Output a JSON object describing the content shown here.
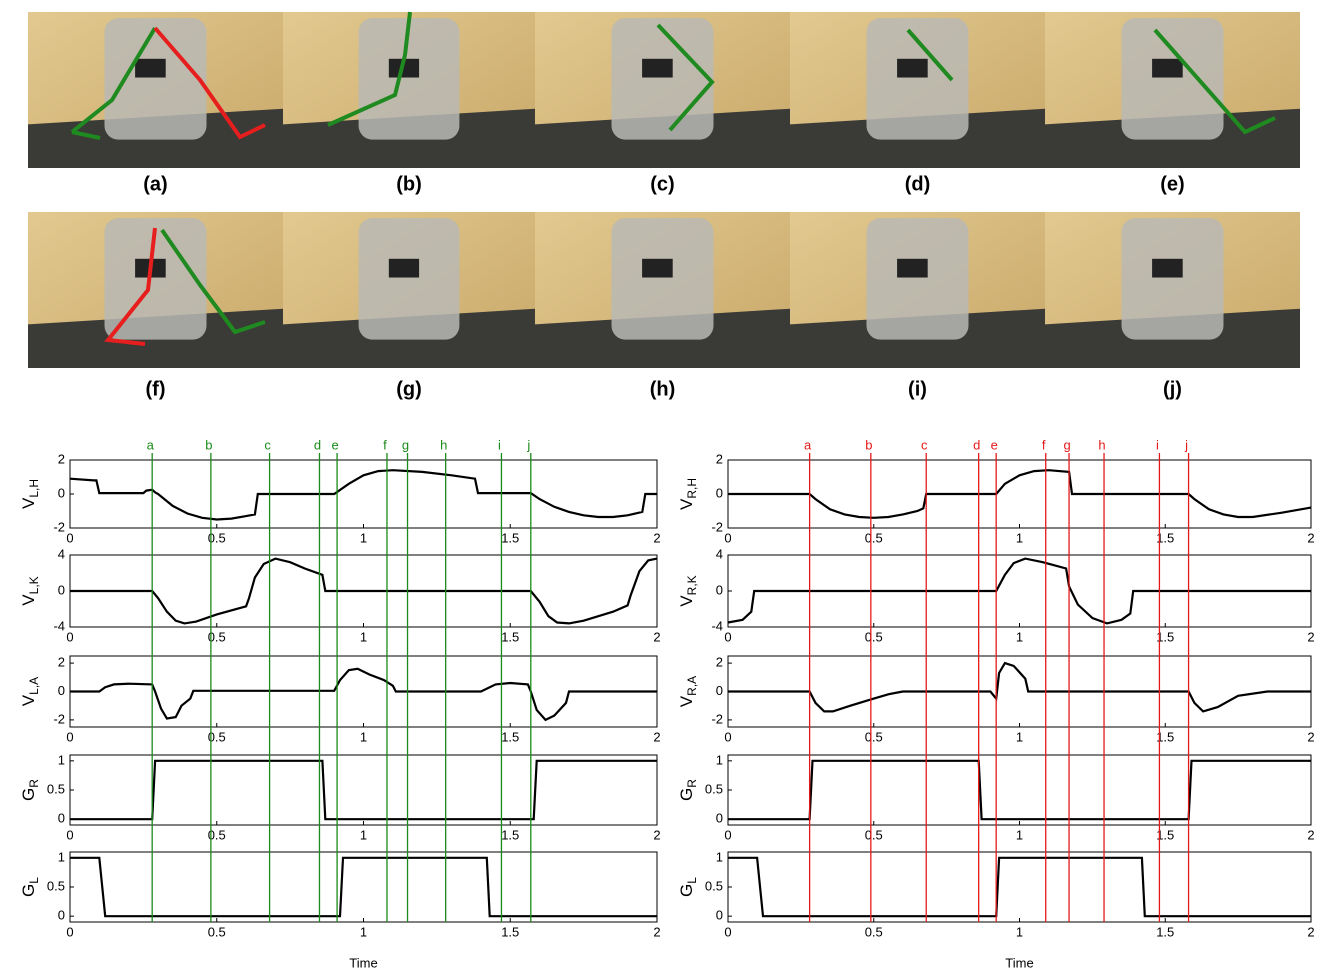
{
  "photos": {
    "labels": [
      "(a)",
      "(b)",
      "(c)",
      "(d)",
      "(e)",
      "(f)",
      "(g)",
      "(h)",
      "(i)",
      "(j)"
    ]
  },
  "markers": [
    {
      "color": "#1a8a1a",
      "labels": [
        "a",
        "b",
        "c",
        "d",
        "e",
        "f",
        "g",
        "h",
        "i",
        "j"
      ],
      "x": [
        0.28,
        0.48,
        0.68,
        0.85,
        0.91,
        1.08,
        1.15,
        1.28,
        1.47,
        1.57
      ]
    },
    {
      "color": "#e41a1a",
      "labels": [
        "a",
        "b",
        "c",
        "d",
        "e",
        "f",
        "g",
        "h",
        "i",
        "j"
      ],
      "x": [
        0.28,
        0.49,
        0.68,
        0.86,
        0.92,
        1.09,
        1.17,
        1.29,
        1.48,
        1.58
      ]
    }
  ],
  "chart_data": [
    {
      "type": "line",
      "ylabel": "V",
      "ylabel_sub": "L,H",
      "xlim": [
        0,
        2
      ],
      "ylim": [
        -2,
        2
      ],
      "xticks": [
        0,
        0.5,
        1,
        1.5,
        2
      ],
      "yticks": [
        -2,
        0,
        2
      ],
      "series": [
        {
          "color": "#000000",
          "x": [
            0,
            0.08,
            0.09,
            0.1,
            0.25,
            0.26,
            0.28,
            0.29,
            0.3,
            0.35,
            0.4,
            0.45,
            0.5,
            0.55,
            0.6,
            0.63,
            0.64,
            0.9,
            0.95,
            1.0,
            1.05,
            1.1,
            1.2,
            1.3,
            1.38,
            1.39,
            1.57,
            1.6,
            1.65,
            1.7,
            1.75,
            1.8,
            1.85,
            1.9,
            1.95,
            1.96,
            2
          ],
          "values": [
            0.9,
            0.8,
            0.8,
            0.05,
            0.05,
            0.2,
            0.25,
            0.1,
            0,
            -0.7,
            -1.15,
            -1.4,
            -1.5,
            -1.45,
            -1.3,
            -1.2,
            0,
            0,
            0.6,
            1.1,
            1.35,
            1.4,
            1.3,
            1.1,
            0.9,
            0.05,
            0.05,
            -0.3,
            -0.75,
            -1.05,
            -1.25,
            -1.35,
            -1.35,
            -1.25,
            -1.05,
            0,
            0
          ]
        }
      ]
    },
    {
      "type": "line",
      "ylabel": "V",
      "ylabel_sub": "L,K",
      "xlim": [
        0,
        2
      ],
      "ylim": [
        -4,
        4
      ],
      "xticks": [
        0,
        0.5,
        1,
        1.5,
        2
      ],
      "yticks": [
        -4,
        0,
        4
      ],
      "series": [
        {
          "color": "#000000",
          "x": [
            0,
            0.28,
            0.3,
            0.33,
            0.36,
            0.39,
            0.43,
            0.5,
            0.6,
            0.61,
            0.63,
            0.66,
            0.7,
            0.75,
            0.8,
            0.86,
            0.87,
            1.57,
            1.6,
            1.63,
            1.66,
            1.7,
            1.75,
            1.85,
            1.9,
            1.91,
            1.94,
            1.97,
            2
          ],
          "values": [
            0,
            0,
            -0.8,
            -2.3,
            -3.3,
            -3.6,
            -3.4,
            -2.6,
            -1.7,
            -0.8,
            1.5,
            3.0,
            3.6,
            3.2,
            2.5,
            1.8,
            0,
            0,
            -1.2,
            -2.8,
            -3.5,
            -3.6,
            -3.3,
            -2.3,
            -1.6,
            -0.5,
            2.2,
            3.4,
            3.6
          ]
        }
      ]
    },
    {
      "type": "line",
      "ylabel": "V",
      "ylabel_sub": "L,A",
      "xlim": [
        0,
        2
      ],
      "ylim": [
        -2.5,
        2.5
      ],
      "xticks": [
        0,
        0.5,
        1,
        1.5,
        2
      ],
      "yticks": [
        -2,
        0,
        2
      ],
      "series": [
        {
          "color": "#000000",
          "x": [
            0,
            0.1,
            0.12,
            0.15,
            0.2,
            0.28,
            0.29,
            0.31,
            0.33,
            0.36,
            0.38,
            0.41,
            0.42,
            0.9,
            0.92,
            0.95,
            0.98,
            1.02,
            1.07,
            1.1,
            1.11,
            1.4,
            1.45,
            1.5,
            1.56,
            1.57,
            1.59,
            1.62,
            1.65,
            1.69,
            1.7,
            2
          ],
          "values": [
            0,
            0,
            0.3,
            0.5,
            0.55,
            0.5,
            0,
            -1.2,
            -1.9,
            -1.8,
            -1.0,
            -0.5,
            0.05,
            0.05,
            0.8,
            1.5,
            1.6,
            1.2,
            0.8,
            0.4,
            0,
            0,
            0.5,
            0.6,
            0.5,
            0,
            -1.3,
            -2.0,
            -1.7,
            -0.8,
            0,
            0
          ]
        }
      ]
    },
    {
      "type": "line",
      "ylabel": "G",
      "ylabel_sub": "R",
      "xlim": [
        0,
        2
      ],
      "ylim": [
        -0.1,
        1.1
      ],
      "xticks": [
        0,
        0.5,
        1,
        1.5,
        2
      ],
      "yticks": [
        0,
        0.5,
        1
      ],
      "series": [
        {
          "color": "#000000",
          "x": [
            0,
            0.28,
            0.29,
            0.86,
            0.87,
            1.58,
            1.59,
            2
          ],
          "values": [
            0,
            0,
            1,
            1,
            0,
            0,
            1,
            1
          ]
        }
      ]
    },
    {
      "type": "line",
      "ylabel": "G",
      "ylabel_sub": "L",
      "xlabel": "Time",
      "xlim": [
        0,
        2
      ],
      "ylim": [
        -0.1,
        1.1
      ],
      "xticks": [
        0,
        0.5,
        1,
        1.5,
        2
      ],
      "yticks": [
        0,
        0.5,
        1
      ],
      "series": [
        {
          "color": "#000000",
          "x": [
            0,
            0.1,
            0.12,
            0.92,
            0.93,
            1.42,
            1.43,
            2
          ],
          "values": [
            1,
            1,
            0,
            0,
            1,
            1,
            0,
            0
          ]
        }
      ]
    },
    {
      "type": "line",
      "ylabel": "V",
      "ylabel_sub": "R,H",
      "xlim": [
        0,
        2
      ],
      "ylim": [
        -2,
        2
      ],
      "xticks": [
        0,
        0.5,
        1,
        1.5,
        2
      ],
      "yticks": [
        -2,
        0,
        2
      ],
      "series": [
        {
          "color": "#000000",
          "x": [
            0,
            0.28,
            0.3,
            0.35,
            0.4,
            0.45,
            0.5,
            0.55,
            0.6,
            0.65,
            0.67,
            0.68,
            0.92,
            0.95,
            1.0,
            1.05,
            1.1,
            1.17,
            1.18,
            1.58,
            1.6,
            1.65,
            1.7,
            1.75,
            1.8,
            1.9,
            2
          ],
          "values": [
            0,
            0,
            -0.3,
            -0.9,
            -1.2,
            -1.35,
            -1.4,
            -1.35,
            -1.2,
            -1.0,
            -0.85,
            0,
            0,
            0.6,
            1.1,
            1.35,
            1.4,
            1.3,
            0,
            0,
            -0.3,
            -0.9,
            -1.2,
            -1.35,
            -1.35,
            -1.1,
            -0.8
          ]
        }
      ]
    },
    {
      "type": "line",
      "ylabel": "V",
      "ylabel_sub": "R,K",
      "xlim": [
        0,
        2
      ],
      "ylim": [
        -4,
        4
      ],
      "xticks": [
        0,
        0.5,
        1,
        1.5,
        2
      ],
      "yticks": [
        -4,
        0,
        4
      ],
      "series": [
        {
          "color": "#000000",
          "x": [
            0,
            0.05,
            0.08,
            0.09,
            0.92,
            0.95,
            0.98,
            1.02,
            1.08,
            1.16,
            1.17,
            1.2,
            1.25,
            1.3,
            1.35,
            1.38,
            1.39,
            2
          ],
          "values": [
            -3.5,
            -3.2,
            -2.3,
            0,
            0,
            1.8,
            3.1,
            3.6,
            3.2,
            2.5,
            0.5,
            -1.5,
            -3.0,
            -3.6,
            -3.2,
            -2.5,
            0,
            0
          ]
        }
      ]
    },
    {
      "type": "line",
      "ylabel": "V",
      "ylabel_sub": "R,A",
      "xlim": [
        0,
        2
      ],
      "ylim": [
        -2.5,
        2.5
      ],
      "xticks": [
        0,
        0.5,
        1,
        1.5,
        2
      ],
      "yticks": [
        -2,
        0,
        2
      ],
      "series": [
        {
          "color": "#000000",
          "x": [
            0,
            0.28,
            0.3,
            0.33,
            0.36,
            0.42,
            0.5,
            0.55,
            0.6,
            0.9,
            0.92,
            0.93,
            0.95,
            0.98,
            1.02,
            1.03,
            1.58,
            1.6,
            1.63,
            1.68,
            1.75,
            1.85,
            2
          ],
          "values": [
            0,
            0,
            -0.8,
            -1.4,
            -1.4,
            -1.0,
            -0.5,
            -0.2,
            0,
            0,
            -0.5,
            1.3,
            2.0,
            1.8,
            0.9,
            0,
            0,
            -0.8,
            -1.4,
            -1.1,
            -0.3,
            0,
            0
          ]
        }
      ]
    },
    {
      "type": "line",
      "ylabel": "G",
      "ylabel_sub": "R",
      "xlim": [
        0,
        2
      ],
      "ylim": [
        -0.1,
        1.1
      ],
      "xticks": [
        0,
        0.5,
        1,
        1.5,
        2
      ],
      "yticks": [
        0,
        0.5,
        1
      ],
      "series": [
        {
          "color": "#000000",
          "x": [
            0,
            0.28,
            0.29,
            0.86,
            0.87,
            1.58,
            1.59,
            2
          ],
          "values": [
            0,
            0,
            1,
            1,
            0,
            0,
            1,
            1
          ]
        }
      ]
    },
    {
      "type": "line",
      "ylabel": "G",
      "ylabel_sub": "L",
      "xlabel": "Time",
      "xlim": [
        0,
        2
      ],
      "ylim": [
        -0.1,
        1.1
      ],
      "xticks": [
        0,
        0.5,
        1,
        1.5,
        2
      ],
      "yticks": [
        0,
        0.5,
        1
      ],
      "series": [
        {
          "color": "#000000",
          "x": [
            0,
            0.1,
            0.12,
            0.92,
            0.93,
            1.42,
            1.43,
            2
          ],
          "values": [
            1,
            1,
            0,
            0,
            1,
            1,
            0,
            0
          ]
        }
      ]
    }
  ]
}
